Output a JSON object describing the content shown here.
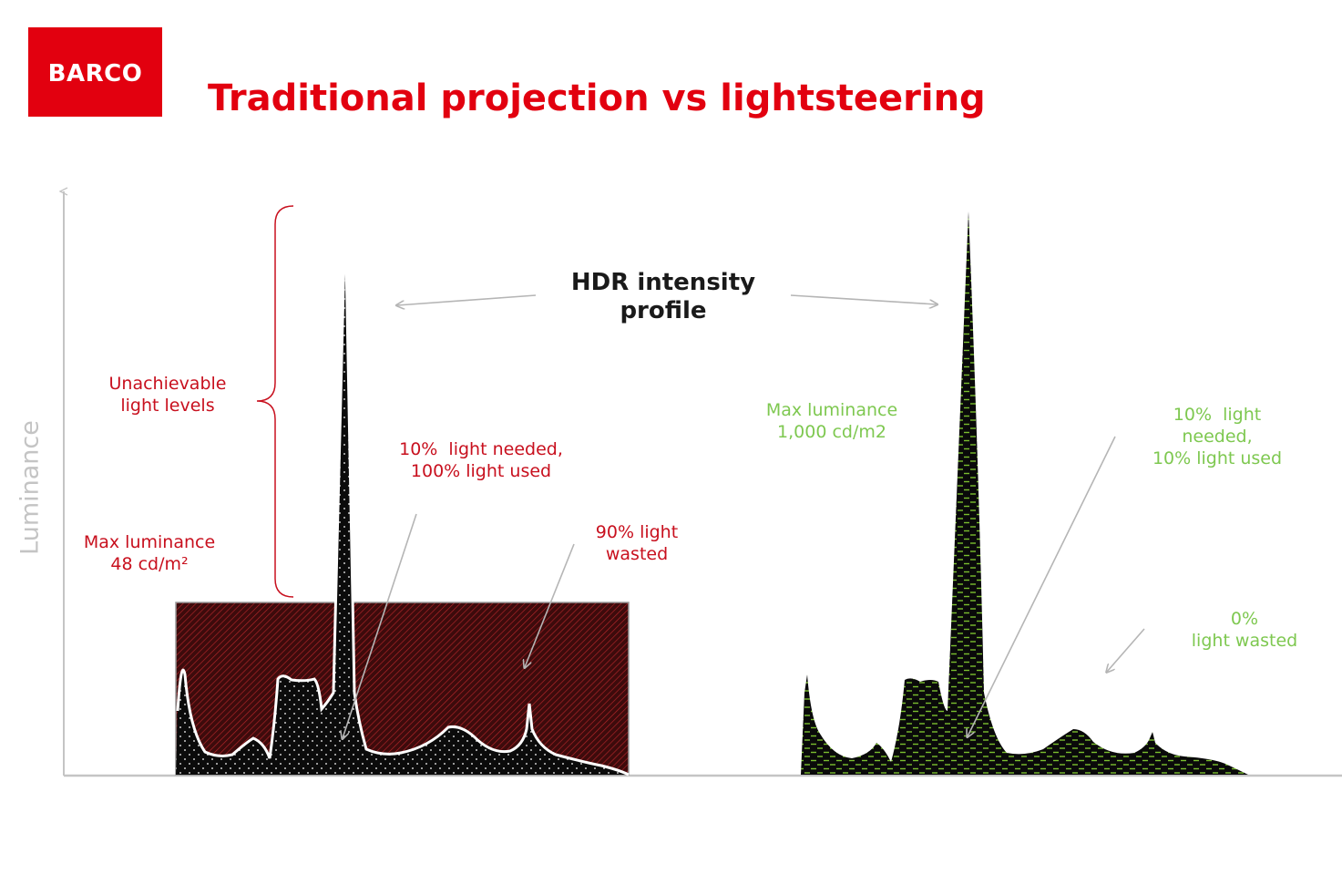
{
  "logo": {
    "text": "BARCO"
  },
  "title": "Traditional projection vs lightsteering",
  "axis": {
    "ylabel": "Luminance"
  },
  "hdr_label": "HDR intensity\nprofile",
  "traditional": {
    "unachievable": "Unachievable\nlight levels",
    "max_luminance": "Max luminance\n48 cd/m²",
    "light_needed": "10%  light needed,\n100% light used",
    "light_wasted": "90% light\nwasted"
  },
  "lightsteering": {
    "max_luminance": "Max luminance\n1,000 cd/m2",
    "light_needed": "10%  light\nneeded,\n10% light used",
    "light_wasted": "0%\nlight wasted"
  },
  "colors": {
    "brand_red": "#e2000f",
    "annotation_red": "#c8101e",
    "annotation_green": "#7ec850",
    "wasted_fill": "#4a0f10",
    "profile_fill": "#0b0b0b",
    "steering_pattern": "#7bbf2e"
  }
}
